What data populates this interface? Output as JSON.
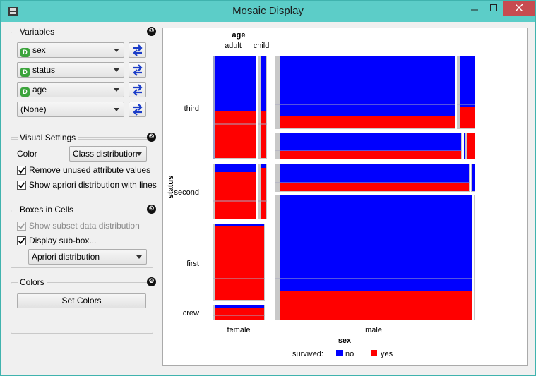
{
  "window": {
    "title": "Mosaic Display"
  },
  "variables": {
    "title": "Variables",
    "badge": "❶",
    "selectors": [
      {
        "tag": "D",
        "value": "sex"
      },
      {
        "tag": "D",
        "value": "status"
      },
      {
        "tag": "D",
        "value": "age"
      },
      {
        "tag": "",
        "value": "(None)"
      }
    ]
  },
  "visual_settings": {
    "title": "Visual Settings",
    "badge": "❷",
    "color_label": "Color",
    "color_value": "Class distribution",
    "remove_unused": "Remove unused attribute values",
    "show_apriori": "Show apriori distribution with lines"
  },
  "boxes": {
    "title": "Boxes in Cells",
    "badge": "❸",
    "show_subset": "Show subset data distribution",
    "display_subbox": "Display sub-box...",
    "subbox_value": "Apriori distribution"
  },
  "colors": {
    "title": "Colors",
    "badge": "❹",
    "set_colors": "Set Colors"
  },
  "mosaic": {
    "age_label": "age",
    "age_values": [
      "adult",
      "child"
    ],
    "status_label": "status",
    "status_values": [
      "third",
      "second",
      "first",
      "crew"
    ],
    "sex_label": "sex",
    "sex_values": [
      "female",
      "male"
    ],
    "legend_title": "survived:",
    "legend": [
      {
        "label": "no",
        "color": "#0000ff"
      },
      {
        "label": "yes",
        "color": "#ff0000"
      }
    ]
  },
  "colors_palette": {
    "no": "#0000ff",
    "yes": "#ff0000",
    "accent": "#5ccdc8"
  }
}
